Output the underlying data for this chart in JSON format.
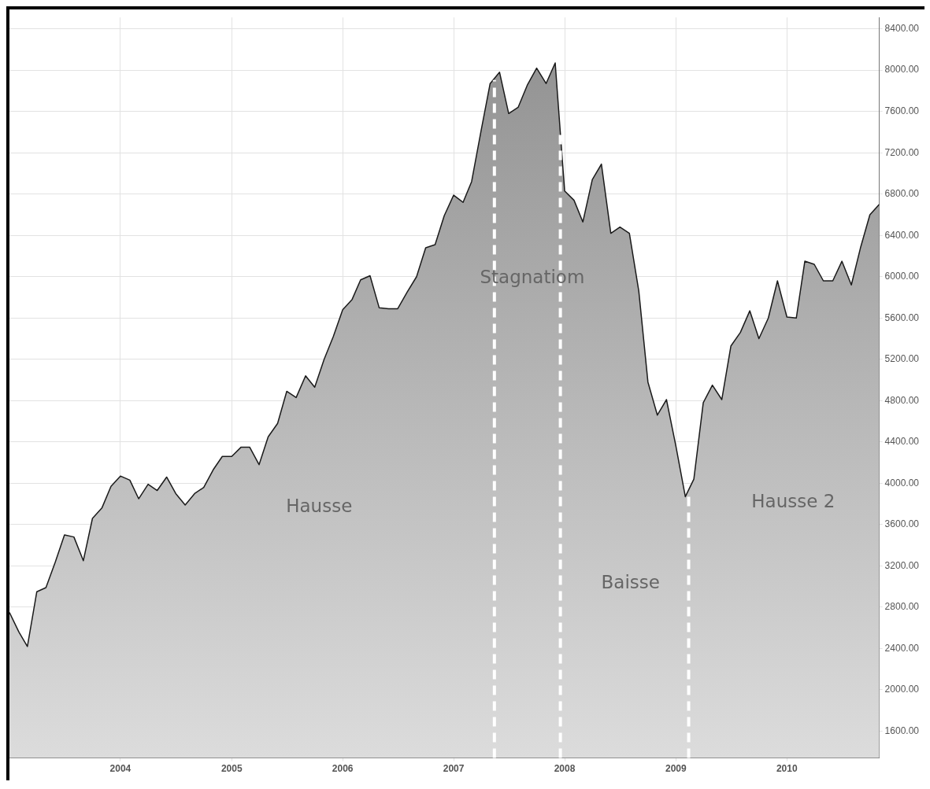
{
  "chart_data": {
    "type": "area",
    "x": [
      "2003-01",
      "2003-02",
      "2003-03",
      "2003-04",
      "2003-05",
      "2003-06",
      "2003-07",
      "2003-08",
      "2003-09",
      "2003-10",
      "2003-11",
      "2003-12",
      "2004-01",
      "2004-02",
      "2004-03",
      "2004-04",
      "2004-05",
      "2004-06",
      "2004-07",
      "2004-08",
      "2004-09",
      "2004-10",
      "2004-11",
      "2004-12",
      "2005-01",
      "2005-02",
      "2005-03",
      "2005-04",
      "2005-05",
      "2005-06",
      "2005-07",
      "2005-08",
      "2005-09",
      "2005-10",
      "2005-11",
      "2005-12",
      "2006-01",
      "2006-02",
      "2006-03",
      "2006-04",
      "2006-05",
      "2006-06",
      "2006-07",
      "2006-08",
      "2006-09",
      "2006-10",
      "2006-11",
      "2006-12",
      "2007-01",
      "2007-02",
      "2007-03",
      "2007-04",
      "2007-05",
      "2007-06",
      "2007-07",
      "2007-08",
      "2007-09",
      "2007-10",
      "2007-11",
      "2007-12",
      "2008-01",
      "2008-02",
      "2008-03",
      "2008-04",
      "2008-05",
      "2008-06",
      "2008-07",
      "2008-08",
      "2008-09",
      "2008-10",
      "2008-11",
      "2008-12",
      "2009-01",
      "2009-02",
      "2009-03",
      "2009-04",
      "2009-05",
      "2009-06",
      "2009-07",
      "2009-08",
      "2009-09",
      "2009-10",
      "2009-11",
      "2009-12",
      "2010-01",
      "2010-02",
      "2010-03",
      "2010-04",
      "2010-05",
      "2010-06",
      "2010-07",
      "2010-08",
      "2010-09",
      "2010-10",
      "2010-11"
    ],
    "series": [
      {
        "color": "#1a1a1a",
        "values": [
          2750,
          2560,
          2420,
          2950,
          2990,
          3240,
          3500,
          3480,
          3250,
          3660,
          3760,
          3970,
          4070,
          4030,
          3850,
          3990,
          3930,
          4060,
          3900,
          3790,
          3900,
          3960,
          4130,
          4260,
          4260,
          4350,
          4350,
          4180,
          4450,
          4580,
          4890,
          4830,
          5040,
          4930,
          5200,
          5420,
          5680,
          5780,
          5970,
          6010,
          5700,
          5690,
          5690,
          5850,
          6000,
          6280,
          6310,
          6590,
          6790,
          6720,
          6920,
          7410,
          7870,
          7980,
          7580,
          7640,
          7860,
          8020,
          7870,
          8070,
          6830,
          6740,
          6530,
          6940,
          7090,
          6420,
          6480,
          6420,
          5860,
          4980,
          4660,
          4810,
          4360,
          3870,
          4040,
          4780,
          4950,
          4810,
          5330,
          5460,
          5670,
          5400,
          5600,
          5960,
          5610,
          5600,
          6150,
          6120,
          5960,
          5960,
          6150,
          5920,
          6290,
          6600,
          6700
        ]
      }
    ],
    "xlim": [
      "2003-01",
      "2010-11"
    ],
    "xticks": [
      "2004",
      "2005",
      "2006",
      "2007",
      "2008",
      "2009",
      "2010"
    ],
    "ylim": [
      1340,
      8510
    ],
    "yticks": [
      {
        "value": 1600,
        "label": "1600.00"
      },
      {
        "value": 2000,
        "label": "2000.00"
      },
      {
        "value": 2400,
        "label": "2400.00"
      },
      {
        "value": 2800,
        "label": "2800.00"
      },
      {
        "value": 3200,
        "label": "3200.00"
      },
      {
        "value": 3600,
        "label": "3600.00"
      },
      {
        "value": 4000,
        "label": "4000.00"
      },
      {
        "value": 4400,
        "label": "4400.00"
      },
      {
        "value": 4800,
        "label": "4800.00"
      },
      {
        "value": 5200,
        "label": "5200.00"
      },
      {
        "value": 5600,
        "label": "5600.00"
      },
      {
        "value": 6000,
        "label": "6000.00"
      },
      {
        "value": 6400,
        "label": "6400.00"
      },
      {
        "value": 6800,
        "label": "6800.00"
      },
      {
        "value": 7200,
        "label": "7200.00"
      },
      {
        "value": 7600,
        "label": "7600.00"
      },
      {
        "value": 8000,
        "label": "8000.00"
      },
      {
        "value": 8400,
        "label": "8400.00"
      }
    ],
    "ref_lines": [
      {
        "axis": "x",
        "value": "2007-05-15",
        "color": "#ffffff",
        "line_style": "dashed"
      },
      {
        "axis": "x",
        "value": "2007-12-18",
        "color": "#ffffff",
        "line_style": "dashed"
      },
      {
        "axis": "x",
        "value": "2009-02-12",
        "color": "#ffffff",
        "line_style": "dashed"
      }
    ],
    "annotations": [
      "Hausse",
      "Stagnatiom",
      "Baisse",
      "Hausse 2"
    ],
    "grid": true,
    "legend": false,
    "marker": "none",
    "line_style": "solid"
  }
}
